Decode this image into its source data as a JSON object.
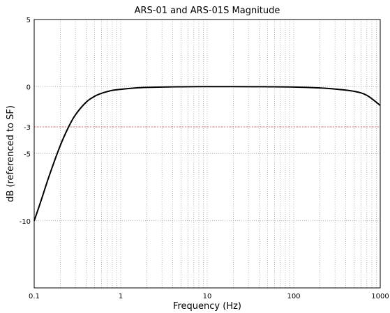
{
  "chart_data": {
    "type": "line",
    "title": "ARS-01 and ARS-01S Magnitude",
    "xlabel": "Frequency (Hz)",
    "ylabel": "dB (referenced to SF)",
    "x_scale": "log",
    "xlim": [
      0.1,
      1000
    ],
    "ylim": [
      -15,
      5
    ],
    "x_ticks": [
      {
        "value": 0.1,
        "label": "0.1"
      },
      {
        "value": 1,
        "label": "1"
      },
      {
        "value": 10,
        "label": "10"
      },
      {
        "value": 100,
        "label": "100"
      },
      {
        "value": 1000,
        "label": "1000"
      }
    ],
    "y_ticks": [
      {
        "value": 5,
        "label": "5"
      },
      {
        "value": 0,
        "label": "0"
      },
      {
        "value": -3,
        "label": "-3"
      },
      {
        "value": -5,
        "label": "-5"
      },
      {
        "value": -10,
        "label": "-10"
      }
    ],
    "grid": true,
    "reference_lines": [
      {
        "y": -3,
        "color": "#e0706c"
      }
    ],
    "series": [
      {
        "color": "#000000",
        "x": [
          0.1,
          0.12,
          0.15,
          0.2,
          0.25,
          0.3,
          0.4,
          0.5,
          0.6,
          0.7,
          0.8,
          1,
          1.5,
          2,
          3,
          5,
          10,
          20,
          50,
          100,
          200,
          300,
          500,
          700,
          1000
        ],
        "y": [
          -10,
          -8.5,
          -6.6,
          -4.4,
          -3.0,
          -2.1,
          -1.15,
          -0.72,
          -0.5,
          -0.37,
          -0.28,
          -0.2,
          -0.1,
          -0.06,
          -0.03,
          -0.01,
          0.0,
          0.0,
          -0.01,
          -0.03,
          -0.1,
          -0.18,
          -0.35,
          -0.65,
          -1.4
        ]
      }
    ]
  }
}
